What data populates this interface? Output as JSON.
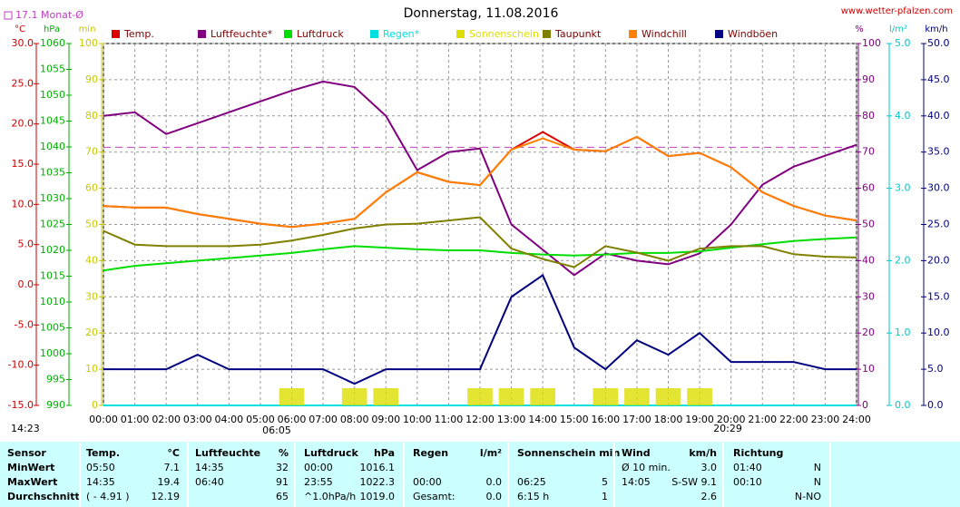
{
  "chart_data": {
    "type": "line",
    "title": "Donnerstag, 11.08.2016",
    "source": "www.wetter-pfalzen.com",
    "monthly_avg": {
      "label": "17.1 Monat-Ø",
      "value": 17.1,
      "color": "#c040c0"
    },
    "categories": [
      "00:00",
      "01:00",
      "02:00",
      "03:00",
      "04:00",
      "05:00",
      "06:00",
      "07:00",
      "08:00",
      "09:00",
      "10:00",
      "11:00",
      "12:00",
      "13:00",
      "14:00",
      "15:00",
      "16:00",
      "17:00",
      "18:00",
      "19:00",
      "20:00",
      "21:00",
      "22:00",
      "23:00",
      "24:00"
    ],
    "time_labels": [
      "14:23",
      "06:05",
      "20:29"
    ],
    "axes": {
      "temp": {
        "unit": "°C",
        "color": "#cc0000",
        "lim": [
          -15,
          30
        ],
        "ticks": [
          {
            "value": -15,
            "label": "-15.0"
          },
          {
            "value": -10,
            "label": "-10.0"
          },
          {
            "value": -5,
            "label": "-5.0"
          },
          {
            "value": 0,
            "label": "0.0"
          },
          {
            "value": 5,
            "label": "5.0"
          },
          {
            "value": 10,
            "label": "10.0"
          },
          {
            "value": 15,
            "label": "15.0"
          },
          {
            "value": 20,
            "label": "20.0"
          },
          {
            "value": 25,
            "label": "25.0"
          },
          {
            "value": 30,
            "label": "30.0"
          }
        ]
      },
      "hpa": {
        "unit": "hPa",
        "color": "#00b000",
        "lim": [
          990,
          1060
        ],
        "ticks": [
          990,
          995,
          1000,
          1005,
          1010,
          1015,
          1020,
          1025,
          1030,
          1035,
          1040,
          1045,
          1050,
          1055,
          1060
        ]
      },
      "min": {
        "unit": "min",
        "color": "#c8c800",
        "lim": [
          0,
          100
        ],
        "ticks": [
          0,
          10,
          20,
          30,
          40,
          50,
          60,
          70,
          80,
          90,
          100
        ]
      },
      "pct": {
        "unit": "%",
        "color": "#800080",
        "lim": [
          0,
          100
        ],
        "ticks": [
          0,
          10,
          20,
          30,
          40,
          50,
          60,
          70,
          80,
          90,
          100
        ]
      },
      "rain": {
        "unit": "l/m²",
        "color": "#00c8c8",
        "lim": [
          0,
          5
        ],
        "ticks": [
          {
            "value": 0,
            "label": "0.0"
          },
          {
            "value": 1,
            "label": "1.0"
          },
          {
            "value": 2,
            "label": "2.0"
          },
          {
            "value": 3,
            "label": "3.0"
          },
          {
            "value": 4,
            "label": "4.0"
          },
          {
            "value": 5,
            "label": "5.0"
          }
        ]
      },
      "wind": {
        "unit": "km/h",
        "color": "#000080",
        "lim": [
          0,
          50
        ],
        "ticks": [
          {
            "value": 0,
            "label": "0.0"
          },
          {
            "value": 5,
            "label": "5.0"
          },
          {
            "value": 10,
            "label": "10.0"
          },
          {
            "value": 15,
            "label": "15.0"
          },
          {
            "value": 20,
            "label": "20.0"
          },
          {
            "value": 25,
            "label": "25.0"
          },
          {
            "value": 30,
            "label": "30.0"
          },
          {
            "value": 35,
            "label": "35.0"
          },
          {
            "value": 40,
            "label": "40.0"
          },
          {
            "value": 45,
            "label": "45.0"
          },
          {
            "value": 50,
            "label": "50.0"
          }
        ]
      }
    },
    "series": [
      {
        "name": "Temp.",
        "color": "#dd0000",
        "axis": "temp",
        "values": [
          9.8,
          9.6,
          9.6,
          8.8,
          8.2,
          7.6,
          7.2,
          7.6,
          8.2,
          11.5,
          14.0,
          12.8,
          12.4,
          16.8,
          19.0,
          16.8,
          16.6,
          18.4,
          16.0,
          16.4,
          14.6,
          11.5,
          9.8,
          8.6,
          8.0
        ]
      },
      {
        "name": "Luftfeuchte*",
        "color": "#800080",
        "axis": "pct",
        "values": [
          80,
          81,
          75,
          78,
          81,
          84,
          87,
          89.5,
          88,
          80,
          65,
          70,
          71,
          50,
          43,
          36,
          42,
          40,
          39,
          42,
          50,
          61,
          66,
          69,
          72
        ]
      },
      {
        "name": "Luftdruck",
        "color": "#00dd00",
        "axis": "hpa",
        "values": [
          1016.1,
          1017,
          1017.5,
          1018,
          1018.5,
          1019,
          1019.5,
          1020.2,
          1020.8,
          1020.5,
          1020.2,
          1020,
          1020,
          1019.5,
          1019.2,
          1019,
          1019.2,
          1019.5,
          1019.5,
          1019.8,
          1020.5,
          1021.2,
          1021.8,
          1022.2,
          1022.5
        ]
      },
      {
        "name": "Regen*",
        "color": "#00e0e0",
        "axis": "rain",
        "values": [
          0,
          0,
          0,
          0,
          0,
          0,
          0,
          0,
          0,
          0,
          0,
          0,
          0,
          0,
          0,
          0,
          0,
          0,
          0,
          0,
          0,
          0,
          0,
          0,
          0
        ]
      },
      {
        "name": "Sonnenschein",
        "color": "#dddd00",
        "axis": "min",
        "bars": true,
        "values": [
          0,
          0,
          0,
          0,
          0,
          0,
          1,
          0,
          1,
          1,
          0,
          0,
          1,
          1,
          1,
          0,
          1,
          1,
          1,
          1,
          0,
          0,
          0,
          0,
          0
        ]
      },
      {
        "name": "Taupunkt",
        "color": "#808000",
        "axis": "temp",
        "values": [
          6.7,
          5.0,
          4.8,
          4.8,
          4.8,
          5.0,
          5.5,
          6.2,
          7.0,
          7.5,
          7.6,
          8.0,
          8.4,
          4.5,
          3.2,
          2.2,
          4.8,
          4.0,
          3.0,
          4.5,
          4.8,
          4.8,
          3.8,
          3.5,
          3.4
        ]
      },
      {
        "name": "Windchill",
        "color": "#ff8000",
        "axis": "temp",
        "values": [
          9.8,
          9.6,
          9.6,
          8.8,
          8.2,
          7.6,
          7.2,
          7.6,
          8.2,
          11.5,
          14.0,
          12.8,
          12.4,
          16.8,
          18.2,
          16.8,
          16.6,
          18.4,
          16.0,
          16.4,
          14.6,
          11.5,
          9.8,
          8.6,
          8.0
        ]
      },
      {
        "name": "Windböen",
        "color": "#000080",
        "axis": "wind",
        "values": [
          5,
          5,
          5,
          7,
          5,
          5,
          5,
          5,
          3,
          5,
          5,
          5,
          5,
          15,
          18,
          8,
          5,
          9,
          7,
          10,
          6,
          6,
          6,
          5,
          5
        ]
      }
    ]
  },
  "table": {
    "header": [
      "Sensor",
      "Temp.",
      "°C",
      "Luftfeuchte",
      "%",
      "Luftdruck",
      "hPa",
      "Regen",
      "l/m²",
      "Sonnenschein min",
      null,
      "Wind",
      "km/h",
      "Richtung",
      null
    ],
    "rows": [
      [
        "MinWert",
        "05:50",
        "7.1",
        "14:35",
        "32",
        "00:00",
        "1016.1",
        null,
        null,
        null,
        null,
        "Ø 10 min.",
        "3.0",
        "01:40",
        "N"
      ],
      [
        "MaxWert",
        "14:35",
        "19.4",
        "06:40",
        "91",
        "23:55",
        "1022.3",
        "00:00",
        "0.0",
        "06:25",
        "5",
        "14:05",
        "S-SW 9.1",
        "00:10",
        "N"
      ],
      [
        "Durchschnitt",
        "( - 4.91 )",
        "12.19",
        null,
        "65",
        "^1.0hPa/h",
        "1019.0",
        "Gesamt:",
        "0.0",
        "6:15 h",
        "1",
        null,
        "2.6",
        null,
        "N-NO"
      ]
    ]
  }
}
